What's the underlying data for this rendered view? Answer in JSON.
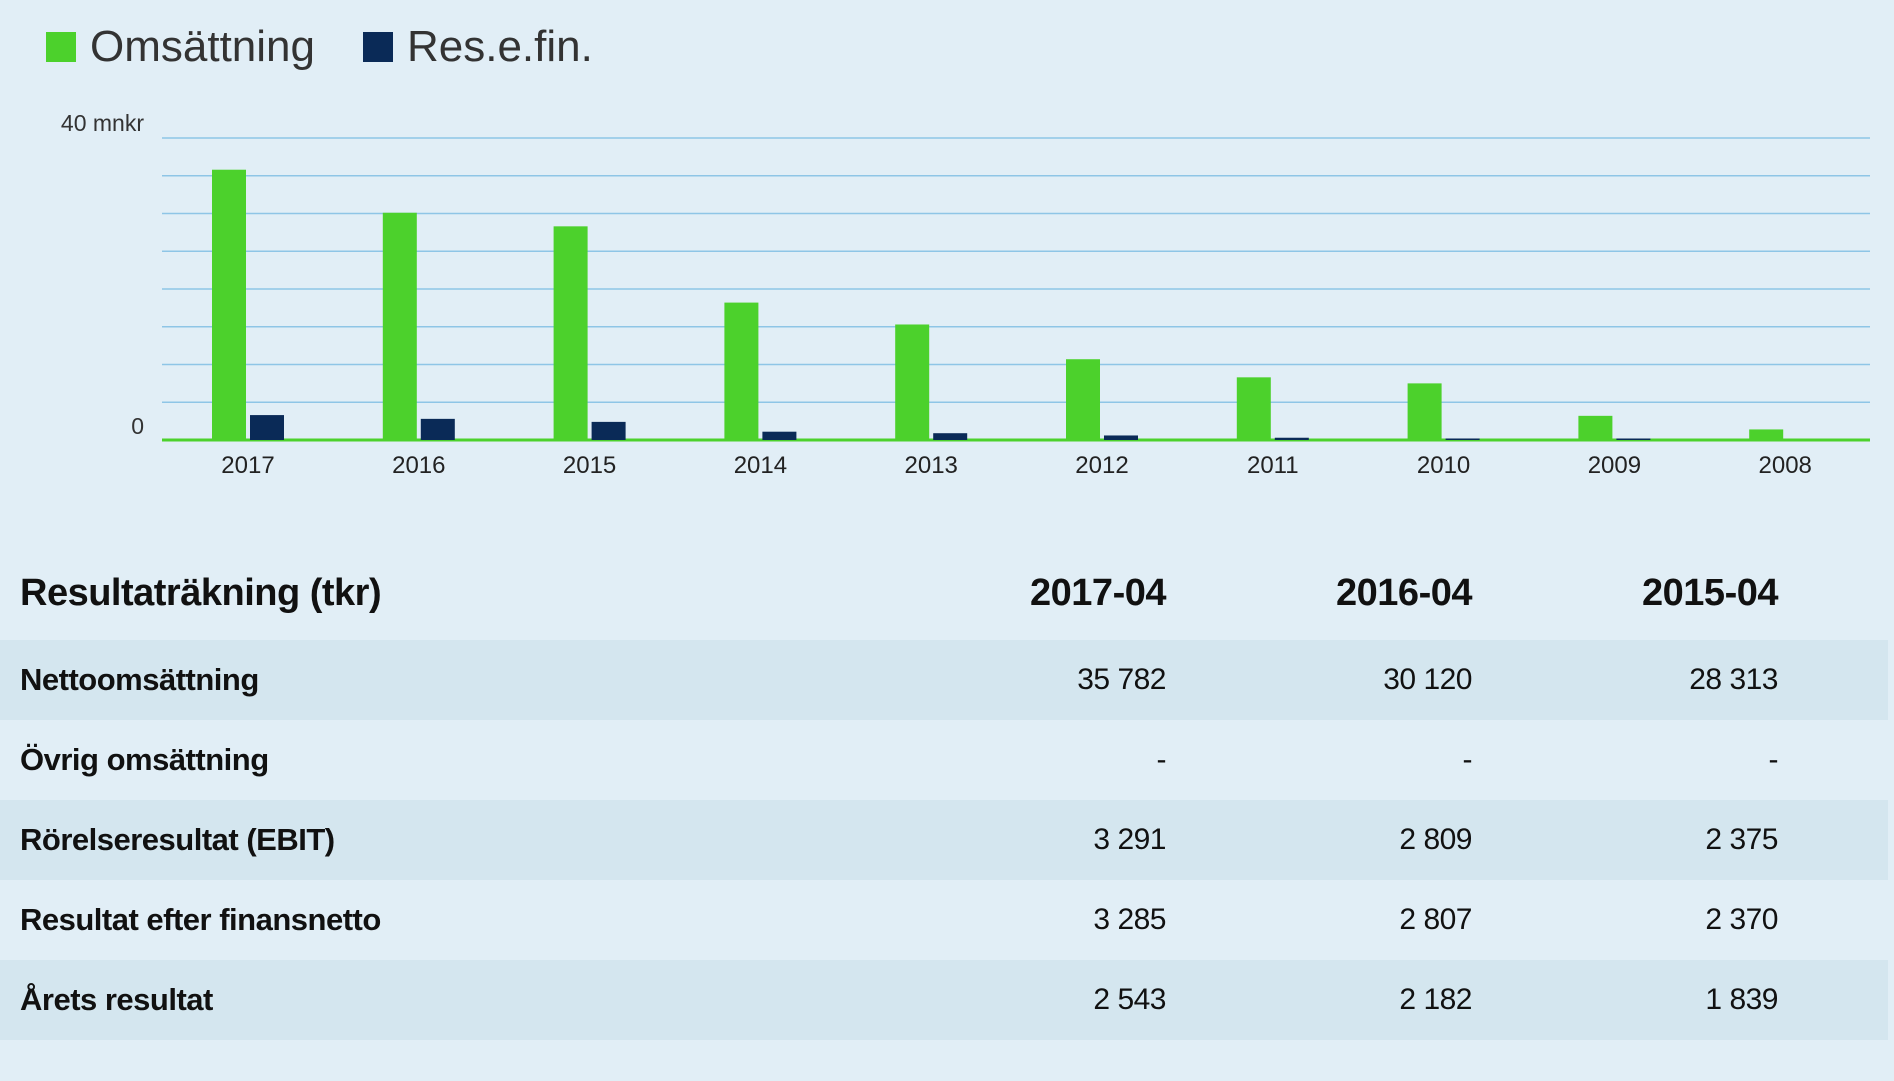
{
  "legend": [
    {
      "label": "Omsättning",
      "color": "#4cd12c"
    },
    {
      "label": "Res.e.fin.",
      "color": "#0a2a57"
    }
  ],
  "chart_data": {
    "type": "bar",
    "categories": [
      "2017",
      "2016",
      "2015",
      "2014",
      "2013",
      "2012",
      "2011",
      "2010",
      "2009",
      "2008"
    ],
    "series": [
      {
        "name": "Omsättning",
        "values": [
          35.8,
          30.1,
          28.3,
          18.2,
          15.3,
          10.7,
          8.3,
          7.5,
          3.2,
          1.4
        ],
        "color": "#4cd12c"
      },
      {
        "name": "Res.e.fin.",
        "values": [
          3.3,
          2.8,
          2.4,
          1.1,
          0.9,
          0.6,
          0.3,
          0.2,
          0.1,
          0.0
        ],
        "color": "#0a2a57"
      }
    ],
    "ylabel_top": "40 mnkr",
    "ylabel_zero": "0",
    "ylim": [
      0,
      40
    ],
    "gridlines": 8,
    "grid": true,
    "legend_position": "top-left"
  },
  "table": {
    "title": "Resultaträkning (tkr)",
    "columns": [
      "2017-04",
      "2016-04",
      "2015-04"
    ],
    "rows": [
      {
        "label": "Nettoomsättning",
        "values": [
          "35 782",
          "30 120",
          "28 313"
        ]
      },
      {
        "label": "Övrig omsättning",
        "values": [
          "-",
          "-",
          "-"
        ]
      },
      {
        "label": "Rörelseresultat (EBIT)",
        "values": [
          "3 291",
          "2 809",
          "2 375"
        ]
      },
      {
        "label": "Resultat efter finansnetto",
        "values": [
          "3 285",
          "2 807",
          "2 370"
        ]
      },
      {
        "label": "Årets resultat",
        "values": [
          "2 543",
          "2 182",
          "1 839"
        ]
      }
    ]
  }
}
